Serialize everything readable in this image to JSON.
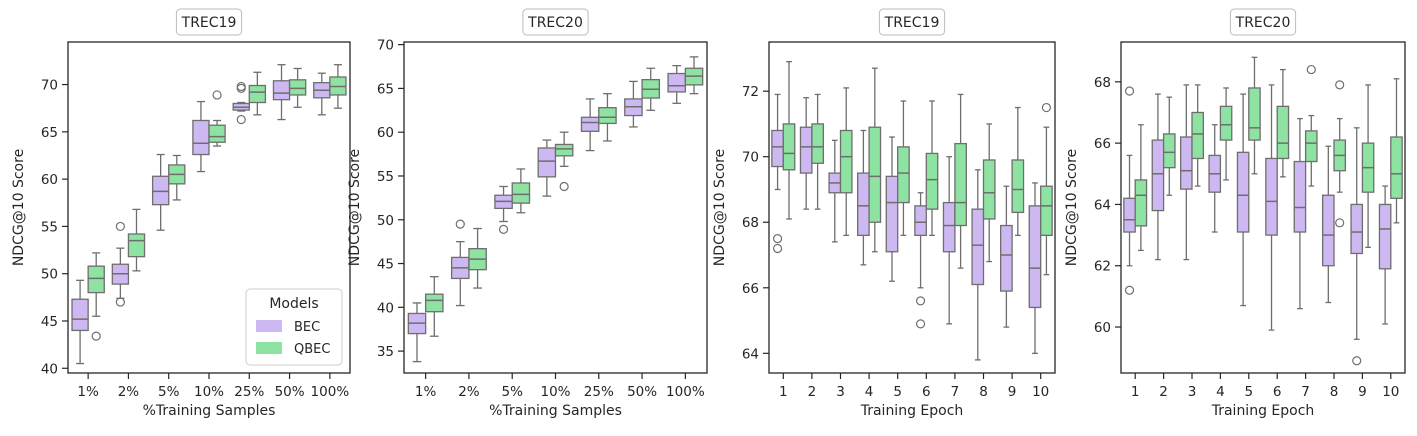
{
  "colors": {
    "bec": "#cdb8f2",
    "qbec": "#8ee2a2",
    "box_line": "#6e6e6e",
    "flier": "#6e6e6e"
  },
  "chart_data": [
    {
      "type": "boxplot",
      "title": "TREC19",
      "xlabel": "%Training Samples",
      "ylabel": "NDCG@10 Score",
      "ylim": [
        39.5,
        74.5
      ],
      "yticks": [
        40,
        45,
        50,
        55,
        60,
        65,
        70
      ],
      "categories": [
        "1%",
        "2%",
        "5%",
        "10%",
        "25%",
        "50%",
        "100%"
      ],
      "legend": {
        "title": "Models",
        "position": "lower-right",
        "entries": [
          "BEC",
          "QBEC"
        ]
      },
      "series": [
        {
          "name": "BEC",
          "color_key": "bec",
          "boxes": [
            {
              "min": 40.5,
              "q1": 44.0,
              "median": 45.2,
              "q3": 47.3,
              "max": 49.3,
              "fliers": []
            },
            {
              "min": 47.4,
              "q1": 48.9,
              "median": 50.0,
              "q3": 51.0,
              "max": 52.7,
              "fliers": [
                55.0,
                47.0
              ]
            },
            {
              "min": 54.6,
              "q1": 57.3,
              "median": 58.7,
              "q3": 60.3,
              "max": 62.6,
              "fliers": []
            },
            {
              "min": 60.8,
              "q1": 62.6,
              "median": 63.8,
              "q3": 66.2,
              "max": 68.2,
              "fliers": []
            },
            {
              "min": 67.2,
              "q1": 67.3,
              "median": 67.6,
              "q3": 68.0,
              "max": 68.1,
              "fliers": [
                69.6,
                69.8,
                66.3
              ]
            },
            {
              "min": 66.3,
              "q1": 68.4,
              "median": 69.1,
              "q3": 70.4,
              "max": 72.1,
              "fliers": []
            },
            {
              "min": 66.8,
              "q1": 68.6,
              "median": 69.4,
              "q3": 70.2,
              "max": 71.2,
              "fliers": []
            }
          ]
        },
        {
          "name": "QBEC",
          "color_key": "qbec",
          "boxes": [
            {
              "min": 45.5,
              "q1": 48.0,
              "median": 49.5,
              "q3": 50.8,
              "max": 52.2,
              "fliers": [
                43.4
              ]
            },
            {
              "min": 50.3,
              "q1": 51.8,
              "median": 53.5,
              "q3": 54.2,
              "max": 56.8,
              "fliers": []
            },
            {
              "min": 57.8,
              "q1": 59.5,
              "median": 60.5,
              "q3": 61.5,
              "max": 62.5,
              "fliers": []
            },
            {
              "min": 63.5,
              "q1": 63.9,
              "median": 64.5,
              "q3": 65.7,
              "max": 66.2,
              "fliers": [
                68.9
              ]
            },
            {
              "min": 66.8,
              "q1": 68.1,
              "median": 69.2,
              "q3": 69.9,
              "max": 71.3,
              "fliers": []
            },
            {
              "min": 67.6,
              "q1": 68.9,
              "median": 69.6,
              "q3": 70.5,
              "max": 71.7,
              "fliers": []
            },
            {
              "min": 67.5,
              "q1": 68.9,
              "median": 69.8,
              "q3": 70.8,
              "max": 72.1,
              "fliers": []
            }
          ]
        }
      ]
    },
    {
      "type": "boxplot",
      "title": "TREC20",
      "xlabel": "%Training Samples",
      "ylabel": "NDCG@10 Score",
      "ylim": [
        32.5,
        70.3
      ],
      "yticks": [
        35,
        40,
        45,
        50,
        55,
        60,
        65,
        70
      ],
      "categories": [
        "1%",
        "2%",
        "5%",
        "10%",
        "25%",
        "50%",
        "100%"
      ],
      "series": [
        {
          "name": "BEC",
          "color_key": "bec",
          "boxes": [
            {
              "min": 33.8,
              "q1": 37.0,
              "median": 38.2,
              "q3": 39.3,
              "max": 40.5,
              "fliers": []
            },
            {
              "min": 40.2,
              "q1": 43.3,
              "median": 44.5,
              "q3": 45.7,
              "max": 47.5,
              "fliers": [
                49.5
              ]
            },
            {
              "min": 49.8,
              "q1": 51.3,
              "median": 52.1,
              "q3": 52.8,
              "max": 53.8,
              "fliers": [
                48.9
              ]
            },
            {
              "min": 52.7,
              "q1": 54.9,
              "median": 56.7,
              "q3": 58.2,
              "max": 59.1,
              "fliers": []
            },
            {
              "min": 57.9,
              "q1": 60.1,
              "median": 61.1,
              "q3": 61.7,
              "max": 63.8,
              "fliers": []
            },
            {
              "min": 60.6,
              "q1": 61.9,
              "median": 62.9,
              "q3": 63.8,
              "max": 65.8,
              "fliers": []
            },
            {
              "min": 63.3,
              "q1": 64.6,
              "median": 65.3,
              "q3": 66.7,
              "max": 67.6,
              "fliers": []
            }
          ]
        },
        {
          "name": "QBEC",
          "color_key": "qbec",
          "boxes": [
            {
              "min": 36.7,
              "q1": 39.5,
              "median": 40.8,
              "q3": 41.5,
              "max": 43.5,
              "fliers": []
            },
            {
              "min": 42.2,
              "q1": 44.3,
              "median": 45.5,
              "q3": 46.7,
              "max": 49.0,
              "fliers": []
            },
            {
              "min": 50.8,
              "q1": 51.9,
              "median": 52.9,
              "q3": 54.2,
              "max": 55.8,
              "fliers": []
            },
            {
              "min": 56.1,
              "q1": 57.3,
              "median": 58.1,
              "q3": 58.6,
              "max": 60.0,
              "fliers": [
                53.8
              ]
            },
            {
              "min": 59.0,
              "q1": 61.0,
              "median": 61.7,
              "q3": 62.8,
              "max": 64.4,
              "fliers": []
            },
            {
              "min": 62.5,
              "q1": 63.9,
              "median": 64.9,
              "q3": 66.0,
              "max": 67.3,
              "fliers": []
            },
            {
              "min": 64.4,
              "q1": 65.4,
              "median": 66.4,
              "q3": 67.3,
              "max": 68.6,
              "fliers": []
            }
          ]
        }
      ]
    },
    {
      "type": "boxplot",
      "title": "TREC19",
      "xlabel": "Training Epoch",
      "ylabel": "NDCG@10 Score",
      "ylim": [
        63.4,
        73.5
      ],
      "yticks": [
        64,
        66,
        68,
        70,
        72
      ],
      "categories": [
        "1",
        "2",
        "3",
        "4",
        "5",
        "6",
        "7",
        "8",
        "9",
        "10"
      ],
      "series": [
        {
          "name": "BEC",
          "color_key": "bec",
          "boxes": [
            {
              "min": 69.0,
              "q1": 69.7,
              "median": 70.3,
              "q3": 70.8,
              "max": 71.9,
              "fliers": [
                67.5,
                67.2
              ]
            },
            {
              "min": 68.4,
              "q1": 69.5,
              "median": 70.3,
              "q3": 70.9,
              "max": 71.8,
              "fliers": []
            },
            {
              "min": 67.4,
              "q1": 68.9,
              "median": 69.2,
              "q3": 69.5,
              "max": 70.5,
              "fliers": []
            },
            {
              "min": 66.7,
              "q1": 67.6,
              "median": 68.5,
              "q3": 69.5,
              "max": 70.8,
              "fliers": []
            },
            {
              "min": 66.2,
              "q1": 67.1,
              "median": 68.6,
              "q3": 69.4,
              "max": 70.6,
              "fliers": []
            },
            {
              "min": 66.0,
              "q1": 67.6,
              "median": 68.0,
              "q3": 68.5,
              "max": 68.9,
              "fliers": [
                65.6,
                64.9
              ]
            },
            {
              "min": 64.9,
              "q1": 67.1,
              "median": 67.9,
              "q3": 68.6,
              "max": 70.0,
              "fliers": []
            },
            {
              "min": 63.8,
              "q1": 66.1,
              "median": 67.3,
              "q3": 68.4,
              "max": 69.6,
              "fliers": []
            },
            {
              "min": 64.8,
              "q1": 65.9,
              "median": 67.0,
              "q3": 67.9,
              "max": 69.1,
              "fliers": []
            },
            {
              "min": 64.0,
              "q1": 65.4,
              "median": 66.6,
              "q3": 68.5,
              "max": 69.2,
              "fliers": []
            }
          ]
        },
        {
          "name": "QBEC",
          "color_key": "qbec",
          "boxes": [
            {
              "min": 68.1,
              "q1": 69.6,
              "median": 70.1,
              "q3": 71.0,
              "max": 72.9,
              "fliers": []
            },
            {
              "min": 68.4,
              "q1": 69.8,
              "median": 70.3,
              "q3": 71.0,
              "max": 71.9,
              "fliers": []
            },
            {
              "min": 67.6,
              "q1": 68.9,
              "median": 70.0,
              "q3": 70.8,
              "max": 72.1,
              "fliers": []
            },
            {
              "min": 67.1,
              "q1": 68.0,
              "median": 69.4,
              "q3": 70.9,
              "max": 72.7,
              "fliers": []
            },
            {
              "min": 67.6,
              "q1": 68.6,
              "median": 69.5,
              "q3": 70.3,
              "max": 71.7,
              "fliers": []
            },
            {
              "min": 67.6,
              "q1": 68.4,
              "median": 69.3,
              "q3": 70.1,
              "max": 71.7,
              "fliers": []
            },
            {
              "min": 66.6,
              "q1": 67.9,
              "median": 68.6,
              "q3": 70.4,
              "max": 71.9,
              "fliers": []
            },
            {
              "min": 66.8,
              "q1": 68.1,
              "median": 68.9,
              "q3": 69.9,
              "max": 71.0,
              "fliers": []
            },
            {
              "min": 67.6,
              "q1": 68.3,
              "median": 69.0,
              "q3": 69.9,
              "max": 71.5,
              "fliers": []
            },
            {
              "min": 66.4,
              "q1": 67.6,
              "median": 68.5,
              "q3": 69.1,
              "max": 70.9,
              "fliers": [
                71.5
              ]
            }
          ]
        }
      ]
    },
    {
      "type": "boxplot",
      "title": "TREC20",
      "xlabel": "Training Epoch",
      "ylabel": "NDCG@10 Score",
      "ylim": [
        58.5,
        69.3
      ],
      "yticks": [
        60,
        62,
        64,
        66,
        68
      ],
      "categories": [
        "1",
        "2",
        "3",
        "4",
        "5",
        "6",
        "7",
        "8",
        "9",
        "10"
      ],
      "series": [
        {
          "name": "BEC",
          "color_key": "bec",
          "boxes": [
            {
              "min": 62.0,
              "q1": 63.1,
              "median": 63.5,
              "q3": 64.2,
              "max": 65.6,
              "fliers": [
                67.7,
                61.2
              ]
            },
            {
              "min": 62.2,
              "q1": 63.8,
              "median": 65.0,
              "q3": 66.1,
              "max": 67.6,
              "fliers": []
            },
            {
              "min": 62.2,
              "q1": 64.5,
              "median": 65.1,
              "q3": 66.2,
              "max": 67.9,
              "fliers": []
            },
            {
              "min": 63.1,
              "q1": 64.4,
              "median": 65.0,
              "q3": 65.6,
              "max": 66.6,
              "fliers": []
            },
            {
              "min": 60.7,
              "q1": 63.1,
              "median": 64.3,
              "q3": 65.7,
              "max": 67.6,
              "fliers": []
            },
            {
              "min": 59.9,
              "q1": 63.0,
              "median": 64.1,
              "q3": 65.5,
              "max": 67.9,
              "fliers": []
            },
            {
              "min": 60.6,
              "q1": 63.1,
              "median": 63.9,
              "q3": 65.4,
              "max": 66.8,
              "fliers": []
            },
            {
              "min": 60.8,
              "q1": 62.0,
              "median": 63.0,
              "q3": 64.3,
              "max": 65.9,
              "fliers": []
            },
            {
              "min": 59.6,
              "q1": 62.4,
              "median": 63.1,
              "q3": 64.0,
              "max": 66.5,
              "fliers": [
                58.9
              ]
            },
            {
              "min": 60.1,
              "q1": 61.9,
              "median": 63.2,
              "q3": 64.0,
              "max": 64.6,
              "fliers": []
            }
          ]
        },
        {
          "name": "QBEC",
          "color_key": "qbec",
          "boxes": [
            {
              "min": 62.5,
              "q1": 63.3,
              "median": 64.3,
              "q3": 64.8,
              "max": 66.6,
              "fliers": []
            },
            {
              "min": 64.3,
              "q1": 65.2,
              "median": 65.7,
              "q3": 66.3,
              "max": 67.5,
              "fliers": []
            },
            {
              "min": 64.6,
              "q1": 65.5,
              "median": 66.3,
              "q3": 67.0,
              "max": 67.9,
              "fliers": []
            },
            {
              "min": 64.8,
              "q1": 66.1,
              "median": 66.6,
              "q3": 67.2,
              "max": 67.8,
              "fliers": []
            },
            {
              "min": 65.0,
              "q1": 66.1,
              "median": 66.5,
              "q3": 67.8,
              "max": 68.8,
              "fliers": []
            },
            {
              "min": 64.9,
              "q1": 65.5,
              "median": 66.0,
              "q3": 67.2,
              "max": 68.4,
              "fliers": []
            },
            {
              "min": 64.6,
              "q1": 65.4,
              "median": 66.0,
              "q3": 66.4,
              "max": 66.9,
              "fliers": [
                68.4
              ]
            },
            {
              "min": 64.4,
              "q1": 65.1,
              "median": 65.6,
              "q3": 66.1,
              "max": 66.8,
              "fliers": [
                67.9,
                63.4
              ]
            },
            {
              "min": 62.6,
              "q1": 64.4,
              "median": 65.2,
              "q3": 66.0,
              "max": 67.9,
              "fliers": []
            },
            {
              "min": 63.4,
              "q1": 64.2,
              "median": 65.0,
              "q3": 66.2,
              "max": 68.1,
              "fliers": []
            }
          ]
        }
      ]
    }
  ]
}
